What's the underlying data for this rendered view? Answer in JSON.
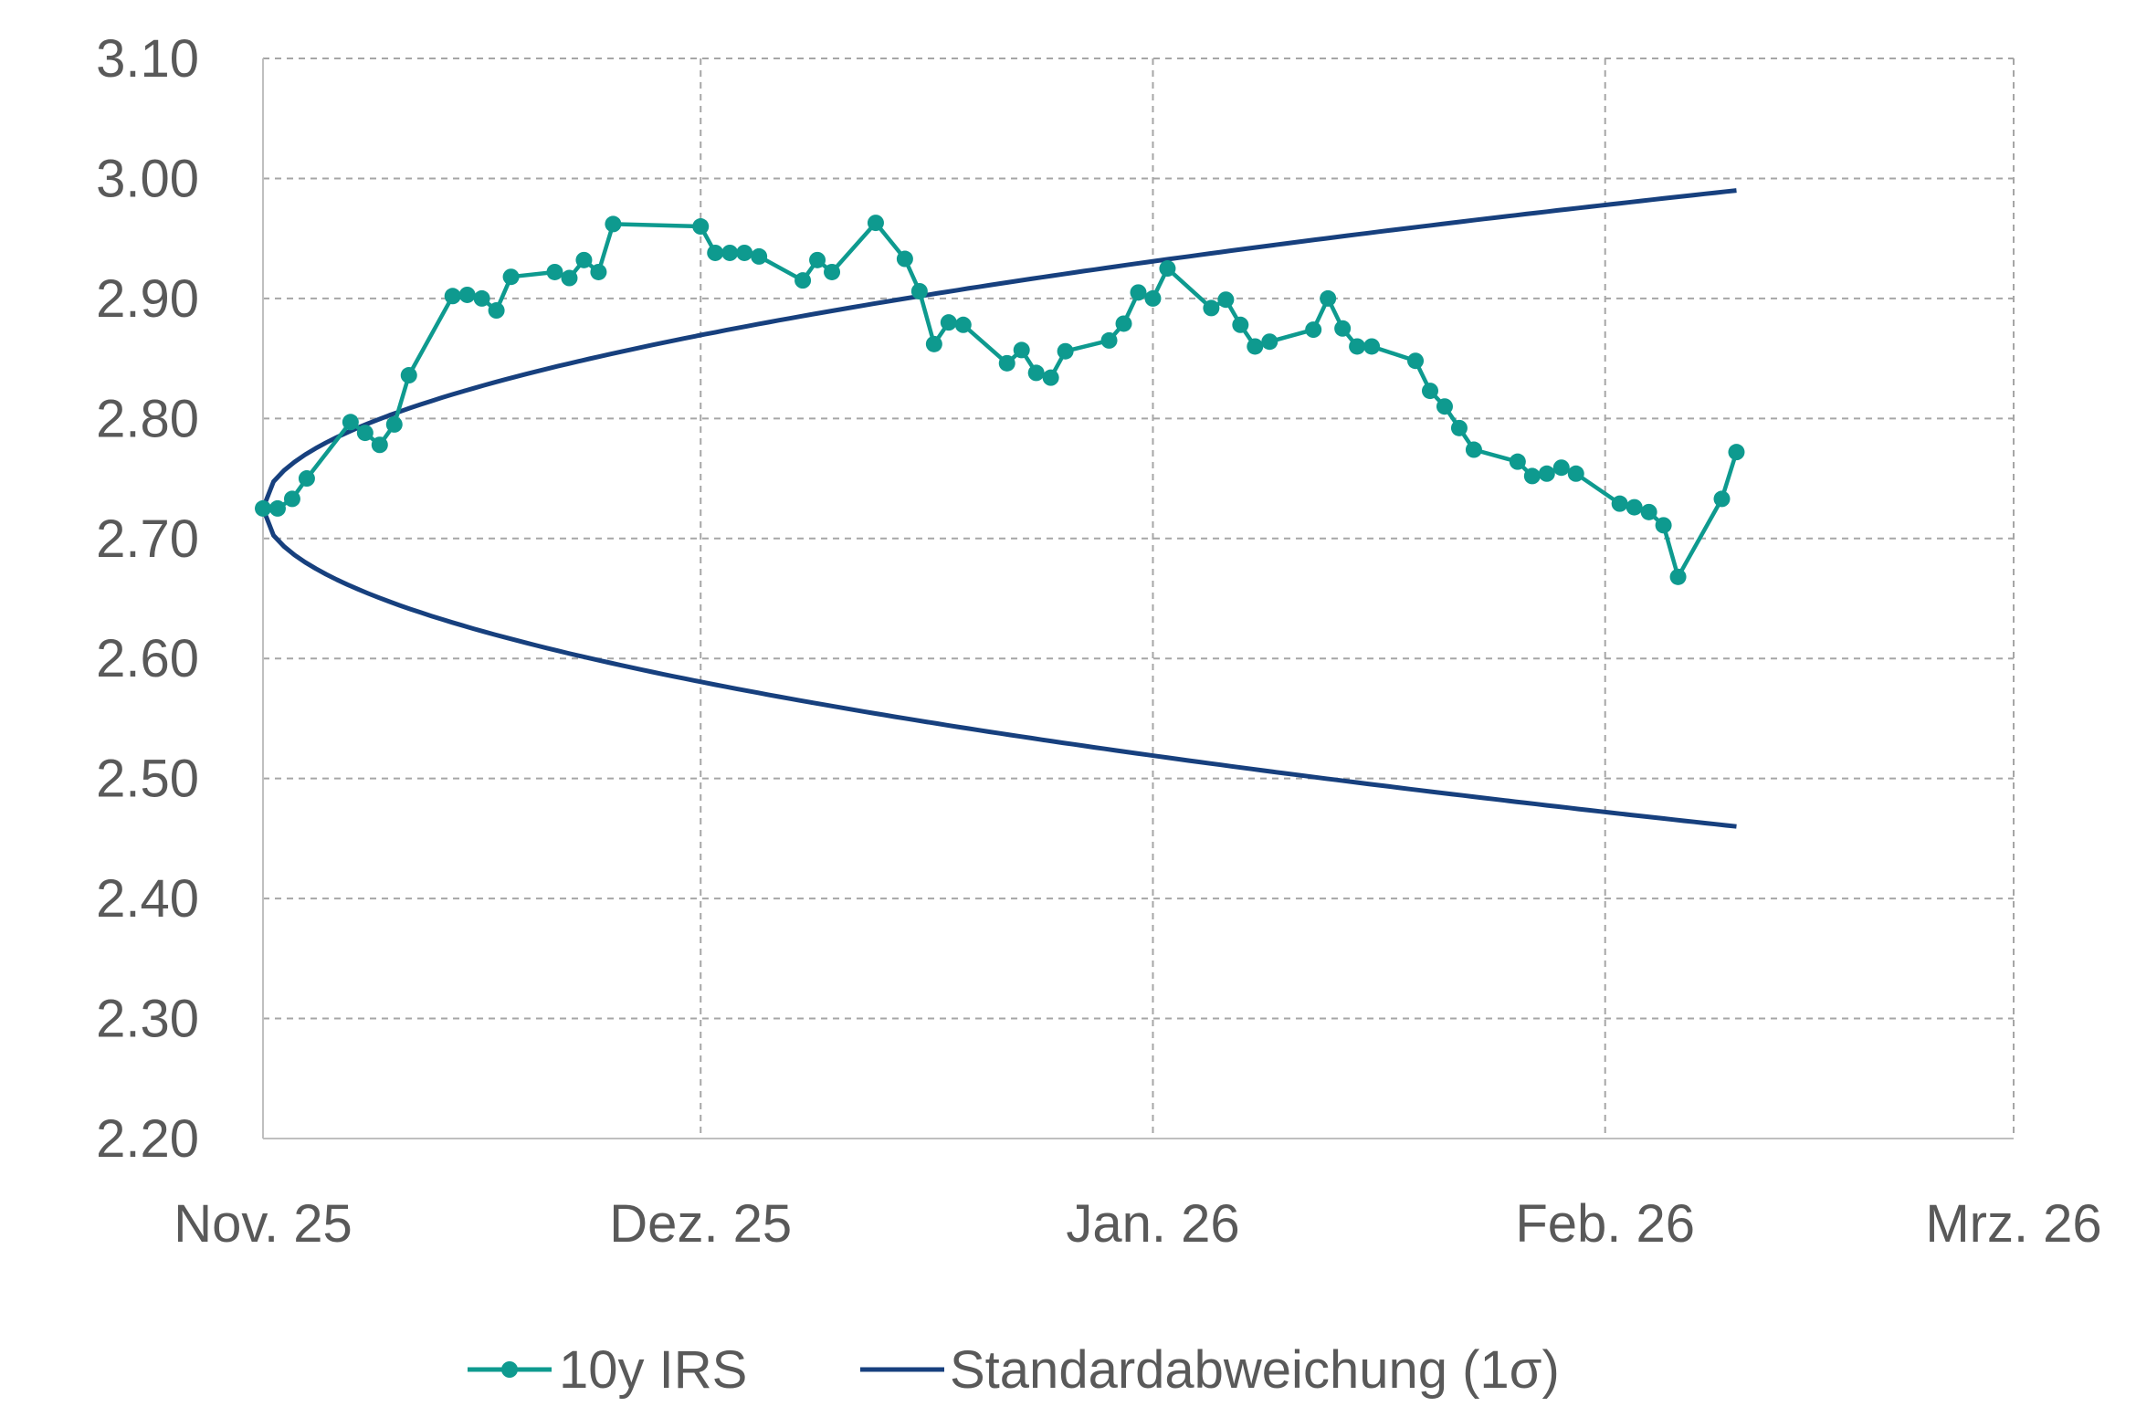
{
  "chart_data": {
    "type": "line",
    "title": "",
    "xlabel": "",
    "ylabel": "",
    "ylim": [
      2.2,
      3.1
    ],
    "y_ticks": [
      "2.20",
      "2.30",
      "2.40",
      "2.50",
      "2.60",
      "2.70",
      "2.80",
      "2.90",
      "3.00",
      "3.10"
    ],
    "x_range": [
      "2025-11-01",
      "2026-03-01"
    ],
    "x_ticks": [
      {
        "date": "2025-11-01",
        "label": "Nov. 25"
      },
      {
        "date": "2025-12-01",
        "label": "Dez. 25"
      },
      {
        "date": "2026-01-01",
        "label": "Jan. 26"
      },
      {
        "date": "2026-02-01",
        "label": "Feb. 26"
      },
      {
        "date": "2026-03-01",
        "label": "Mrz. 26"
      }
    ],
    "grid": true,
    "legend_position": "bottom",
    "series": [
      {
        "name": "10y IRS",
        "color": "#0e9a8f",
        "markers": true,
        "points": [
          [
            "2025-11-01",
            2.725
          ],
          [
            "2025-11-02",
            2.725
          ],
          [
            "2025-11-03",
            2.733
          ],
          [
            "2025-11-04",
            2.75
          ],
          [
            "2025-11-07",
            2.797
          ],
          [
            "2025-11-08",
            2.788
          ],
          [
            "2025-11-09",
            2.778
          ],
          [
            "2025-11-10",
            2.795
          ],
          [
            "2025-11-11",
            2.836
          ],
          [
            "2025-11-14",
            2.902
          ],
          [
            "2025-11-15",
            2.903
          ],
          [
            "2025-11-16",
            2.9
          ],
          [
            "2025-11-17",
            2.89
          ],
          [
            "2025-11-18",
            2.918
          ],
          [
            "2025-11-21",
            2.922
          ],
          [
            "2025-11-22",
            2.917
          ],
          [
            "2025-11-23",
            2.932
          ],
          [
            "2025-11-24",
            2.922
          ],
          [
            "2025-11-25",
            2.962
          ],
          [
            "2025-12-01",
            2.96
          ],
          [
            "2025-12-02",
            2.938
          ],
          [
            "2025-12-03",
            2.938
          ],
          [
            "2025-12-04",
            2.938
          ],
          [
            "2025-12-05",
            2.935
          ],
          [
            "2025-12-08",
            2.915
          ],
          [
            "2025-12-09",
            2.932
          ],
          [
            "2025-12-10",
            2.922
          ],
          [
            "2025-12-13",
            2.963
          ],
          [
            "2025-12-15",
            2.933
          ],
          [
            "2025-12-16",
            2.906
          ],
          [
            "2025-12-17",
            2.862
          ],
          [
            "2025-12-18",
            2.88
          ],
          [
            "2025-12-19",
            2.878
          ],
          [
            "2025-12-22",
            2.846
          ],
          [
            "2025-12-23",
            2.857
          ],
          [
            "2025-12-24",
            2.838
          ],
          [
            "2025-12-25",
            2.834
          ],
          [
            "2025-12-26",
            2.856
          ],
          [
            "2025-12-29",
            2.865
          ],
          [
            "2025-12-30",
            2.879
          ],
          [
            "2025-12-31",
            2.905
          ],
          [
            "2026-01-01",
            2.9
          ],
          [
            "2026-01-02",
            2.925
          ],
          [
            "2026-01-05",
            2.892
          ],
          [
            "2026-01-06",
            2.899
          ],
          [
            "2026-01-07",
            2.878
          ],
          [
            "2026-01-08",
            2.86
          ],
          [
            "2026-01-09",
            2.864
          ],
          [
            "2026-01-12",
            2.874
          ],
          [
            "2026-01-13",
            2.9
          ],
          [
            "2026-01-14",
            2.875
          ],
          [
            "2026-01-15",
            2.86
          ],
          [
            "2026-01-16",
            2.86
          ],
          [
            "2026-01-19",
            2.848
          ],
          [
            "2026-01-20",
            2.823
          ],
          [
            "2026-01-21",
            2.81
          ],
          [
            "2026-01-22",
            2.792
          ],
          [
            "2026-01-23",
            2.774
          ],
          [
            "2026-01-26",
            2.764
          ],
          [
            "2026-01-27",
            2.752
          ],
          [
            "2026-01-28",
            2.754
          ],
          [
            "2026-01-29",
            2.759
          ],
          [
            "2026-01-30",
            2.754
          ],
          [
            "2026-02-02",
            2.729
          ],
          [
            "2026-02-03",
            2.726
          ],
          [
            "2026-02-04",
            2.722
          ],
          [
            "2026-02-05",
            2.711
          ],
          [
            "2026-02-06",
            2.668
          ],
          [
            "2026-02-09",
            2.733
          ],
          [
            "2026-02-10",
            2.772
          ]
        ]
      },
      {
        "name": "Standardabweichung (1σ)",
        "color": "#17407e",
        "markers": false,
        "start_date": "2025-11-01",
        "end_date": "2026-02-10",
        "center": 2.725,
        "upper_end": 2.99,
        "lower_end": 2.46
      }
    ]
  }
}
